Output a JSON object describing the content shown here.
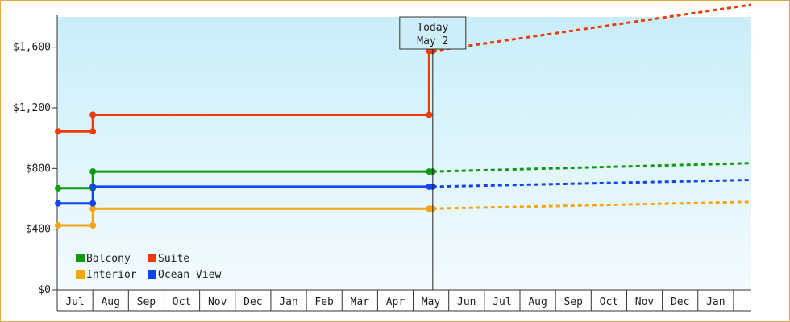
{
  "chart_data": {
    "type": "line",
    "title": "",
    "xlabel": "",
    "ylabel": "",
    "ylim": [
      0,
      1800
    ],
    "y_ticks": [
      {
        "value": 0,
        "label": "$0"
      },
      {
        "value": 400,
        "label": "$400"
      },
      {
        "value": 800,
        "label": "$800"
      },
      {
        "value": 1200,
        "label": "$1,200"
      },
      {
        "value": 1600,
        "label": "$1,600"
      }
    ],
    "x_ticks": [
      "Jul",
      "Aug",
      "Sep",
      "Oct",
      "Nov",
      "Dec",
      "Jan",
      "Feb",
      "Mar",
      "Apr",
      "May",
      "Jun",
      "Jul",
      "Aug",
      "Sep",
      "Oct",
      "Nov",
      "Dec",
      "Jan"
    ],
    "x_domain_months": [
      -0.5,
      19.0
    ],
    "today": {
      "line1": "Today",
      "line2": "May 2",
      "x": 10.05
    },
    "grid": false,
    "legend_position": "bottom-left",
    "series": [
      {
        "name": "Balcony",
        "color": "#119a11",
        "points": [
          [
            -0.5,
            670
          ],
          [
            0.5,
            670
          ],
          [
            0.5,
            780
          ],
          [
            9.95,
            780
          ],
          [
            10.05,
            780
          ]
        ],
        "forecast": [
          [
            10.05,
            780
          ],
          [
            19.0,
            835
          ]
        ]
      },
      {
        "name": "Suite",
        "color": "#f03a0c",
        "points": [
          [
            -0.5,
            1045
          ],
          [
            0.5,
            1045
          ],
          [
            0.5,
            1155
          ],
          [
            9.95,
            1155
          ],
          [
            9.95,
            1575
          ],
          [
            10.05,
            1575
          ]
        ],
        "forecast": [
          [
            10.05,
            1575
          ],
          [
            19.0,
            1880
          ]
        ]
      },
      {
        "name": "Interior",
        "color": "#f3a417",
        "points": [
          [
            -0.5,
            425
          ],
          [
            0.5,
            425
          ],
          [
            0.5,
            535
          ],
          [
            9.95,
            535
          ],
          [
            10.05,
            535
          ]
        ],
        "forecast": [
          [
            10.05,
            535
          ],
          [
            19.0,
            580
          ]
        ]
      },
      {
        "name": "Ocean View",
        "color": "#1244f0",
        "points": [
          [
            -0.5,
            570
          ],
          [
            0.5,
            570
          ],
          [
            0.5,
            680
          ],
          [
            9.95,
            680
          ],
          [
            10.05,
            680
          ]
        ],
        "forecast": [
          [
            10.05,
            680
          ],
          [
            19.0,
            725
          ]
        ]
      }
    ]
  }
}
